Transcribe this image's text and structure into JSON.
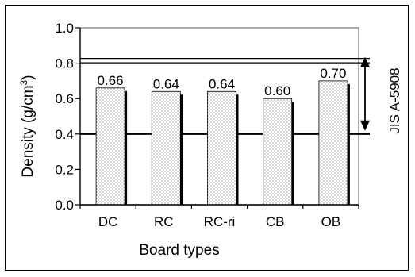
{
  "chart_data": {
    "type": "bar",
    "categories": [
      "DC",
      "RC",
      "RC-ri",
      "CB",
      "OB"
    ],
    "values": [
      0.66,
      0.64,
      0.64,
      0.6,
      0.7
    ],
    "value_labels": [
      "0.66",
      "0.64",
      "0.64",
      "0.60",
      "0.70"
    ],
    "title": "",
    "xlabel": "Board types",
    "ylabel": "Density (g/cm",
    "ylabel_superscript": "3",
    "ylabel_suffix": ")",
    "ylim": [
      0.0,
      1.0
    ],
    "yticks": [
      0.0,
      0.2,
      0.4,
      0.6,
      0.8,
      1.0
    ],
    "ytick_labels": [
      "0.0",
      "0.2",
      "0.4",
      "0.6",
      "0.8",
      "1.0"
    ],
    "reference_lines": [
      0.4,
      0.8
    ],
    "reference_range": {
      "low": 0.4,
      "high": 0.8,
      "label": "JIS A-5908"
    },
    "grid": false,
    "legend": "none",
    "bar_fill": "dotted",
    "bar_shadow_color": "#000000",
    "colors": {
      "axis": "#000000",
      "frame": "#808080",
      "bar_fill": "#ffffff",
      "bar_dots": "#9a9a9a"
    }
  }
}
